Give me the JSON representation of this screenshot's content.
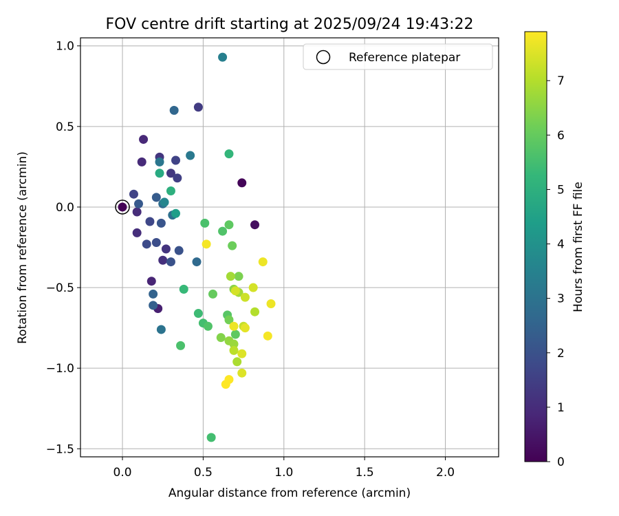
{
  "chart_data": {
    "type": "scatter",
    "title": "FOV centre drift starting at 2025/09/24 19:43:22",
    "xlabel": "Angular distance from reference (arcmin)",
    "ylabel": "Rotation from reference (arcmin)",
    "xlim": [
      -0.26,
      2.33
    ],
    "ylim": [
      -1.55,
      1.05
    ],
    "grid": true,
    "xticks": [
      0.0,
      0.5,
      1.0,
      1.5,
      2.0
    ],
    "xtick_labels": [
      "0.0",
      "0.5",
      "1.0",
      "1.5",
      "2.0"
    ],
    "yticks": [
      1.0,
      0.5,
      0.0,
      -0.5,
      -1.0,
      -1.5
    ],
    "ytick_labels": [
      "1.0",
      "0.5",
      "0.0",
      "−0.5",
      "−1.0",
      "−1.5"
    ],
    "legend": {
      "label": "Reference platepar",
      "placement": "top-right"
    },
    "reference_point": {
      "x": 0.0,
      "y": 0.0
    },
    "colorbar": {
      "label": "Hours from first FF file",
      "range": [
        0,
        7.9
      ],
      "ticks": [
        0,
        1,
        2,
        3,
        4,
        5,
        6,
        7
      ],
      "tick_labels": [
        "0",
        "1",
        "2",
        "3",
        "4",
        "5",
        "6",
        "7"
      ],
      "colormap": "viridis",
      "colormap_stops": [
        "#440154",
        "#482878",
        "#3e4989",
        "#31688e",
        "#26828e",
        "#1f9e89",
        "#35b779",
        "#6ece58",
        "#b5de2b",
        "#fde725"
      ]
    },
    "points": [
      {
        "x": 0.0,
        "y": 0.0,
        "c": 0.05
      },
      {
        "x": 0.74,
        "y": 0.15,
        "c": 0.1
      },
      {
        "x": 0.82,
        "y": -0.11,
        "c": 0.3
      },
      {
        "x": 0.22,
        "y": -0.63,
        "c": 0.7
      },
      {
        "x": 0.18,
        "y": -0.46,
        "c": 0.8
      },
      {
        "x": 0.13,
        "y": 0.42,
        "c": 0.9
      },
      {
        "x": 0.12,
        "y": 0.28,
        "c": 0.95
      },
      {
        "x": 0.09,
        "y": -0.03,
        "c": 1.0
      },
      {
        "x": 0.09,
        "y": -0.16,
        "c": 1.05
      },
      {
        "x": 0.25,
        "y": -0.33,
        "c": 1.1
      },
      {
        "x": 0.27,
        "y": -0.26,
        "c": 1.2
      },
      {
        "x": 0.23,
        "y": 0.31,
        "c": 1.25
      },
      {
        "x": 0.3,
        "y": 0.21,
        "c": 1.3
      },
      {
        "x": 0.47,
        "y": 0.62,
        "c": 1.4
      },
      {
        "x": 0.34,
        "y": 0.18,
        "c": 1.5
      },
      {
        "x": 0.33,
        "y": 0.29,
        "c": 1.6
      },
      {
        "x": 0.07,
        "y": 0.08,
        "c": 1.6
      },
      {
        "x": 0.17,
        "y": -0.09,
        "c": 1.7
      },
      {
        "x": 0.15,
        "y": -0.23,
        "c": 1.8
      },
      {
        "x": 0.21,
        "y": -0.22,
        "c": 1.9
      },
      {
        "x": 0.35,
        "y": -0.27,
        "c": 2.0
      },
      {
        "x": 0.3,
        "y": -0.34,
        "c": 2.0
      },
      {
        "x": 0.24,
        "y": -0.1,
        "c": 2.1
      },
      {
        "x": 0.1,
        "y": 0.02,
        "c": 2.2
      },
      {
        "x": 0.21,
        "y": 0.06,
        "c": 2.3
      },
      {
        "x": 0.19,
        "y": -0.61,
        "c": 2.4
      },
      {
        "x": 0.19,
        "y": -0.54,
        "c": 2.5
      },
      {
        "x": 0.32,
        "y": 0.6,
        "c": 2.6
      },
      {
        "x": 0.46,
        "y": -0.34,
        "c": 2.7
      },
      {
        "x": 0.25,
        "y": 0.02,
        "c": 2.8
      },
      {
        "x": 0.31,
        "y": -0.05,
        "c": 2.9
      },
      {
        "x": 0.24,
        "y": -0.76,
        "c": 3.0
      },
      {
        "x": 0.23,
        "y": 0.28,
        "c": 3.1
      },
      {
        "x": 0.42,
        "y": 0.32,
        "c": 3.2
      },
      {
        "x": 0.62,
        "y": 0.93,
        "c": 3.4
      },
      {
        "x": 0.26,
        "y": 0.03,
        "c": 3.6
      },
      {
        "x": 0.33,
        "y": -0.04,
        "c": 4.4
      },
      {
        "x": 0.23,
        "y": 0.21,
        "c": 4.8
      },
      {
        "x": 0.3,
        "y": 0.1,
        "c": 5.0
      },
      {
        "x": 0.66,
        "y": 0.33,
        "c": 5.2
      },
      {
        "x": 0.38,
        "y": -0.51,
        "c": 5.3
      },
      {
        "x": 0.47,
        "y": -0.66,
        "c": 5.4
      },
      {
        "x": 0.55,
        "y": -1.43,
        "c": 5.5
      },
      {
        "x": 0.5,
        "y": -0.72,
        "c": 5.5
      },
      {
        "x": 0.36,
        "y": -0.86,
        "c": 5.6
      },
      {
        "x": 0.51,
        "y": -0.1,
        "c": 5.6
      },
      {
        "x": 0.62,
        "y": -0.15,
        "c": 5.7
      },
      {
        "x": 0.53,
        "y": -0.74,
        "c": 5.7
      },
      {
        "x": 0.65,
        "y": -0.67,
        "c": 5.8
      },
      {
        "x": 0.66,
        "y": -0.11,
        "c": 5.9
      },
      {
        "x": 0.7,
        "y": -0.79,
        "c": 5.9
      },
      {
        "x": 0.56,
        "y": -0.54,
        "c": 6.0
      },
      {
        "x": 0.68,
        "y": -0.24,
        "c": 6.1
      },
      {
        "x": 0.66,
        "y": -0.7,
        "c": 6.2
      },
      {
        "x": 0.72,
        "y": -0.43,
        "c": 6.3
      },
      {
        "x": 0.61,
        "y": -0.81,
        "c": 6.4
      },
      {
        "x": 0.69,
        "y": -0.51,
        "c": 6.5
      },
      {
        "x": 0.66,
        "y": -0.83,
        "c": 6.6
      },
      {
        "x": 0.69,
        "y": -0.85,
        "c": 6.7
      },
      {
        "x": 0.67,
        "y": -0.43,
        "c": 6.8
      },
      {
        "x": 0.72,
        "y": -0.53,
        "c": 6.8
      },
      {
        "x": 0.71,
        "y": -0.96,
        "c": 6.9
      },
      {
        "x": 0.82,
        "y": -0.65,
        "c": 7.0
      },
      {
        "x": 0.69,
        "y": -0.89,
        "c": 7.1
      },
      {
        "x": 0.75,
        "y": -0.74,
        "c": 7.2
      },
      {
        "x": 0.76,
        "y": -0.56,
        "c": 7.3
      },
      {
        "x": 0.81,
        "y": -0.5,
        "c": 7.4
      },
      {
        "x": 0.7,
        "y": -0.52,
        "c": 7.4
      },
      {
        "x": 0.74,
        "y": -1.03,
        "c": 7.5
      },
      {
        "x": 0.74,
        "y": -0.91,
        "c": 7.5
      },
      {
        "x": 0.76,
        "y": -0.75,
        "c": 7.6
      },
      {
        "x": 0.69,
        "y": -0.74,
        "c": 7.7
      },
      {
        "x": 0.87,
        "y": -0.34,
        "c": 7.7
      },
      {
        "x": 0.92,
        "y": -0.6,
        "c": 7.7
      },
      {
        "x": 0.9,
        "y": -0.8,
        "c": 7.8
      },
      {
        "x": 0.52,
        "y": -0.23,
        "c": 7.8
      },
      {
        "x": 0.66,
        "y": -1.07,
        "c": 7.9
      },
      {
        "x": 0.64,
        "y": -1.1,
        "c": 7.9
      }
    ]
  }
}
